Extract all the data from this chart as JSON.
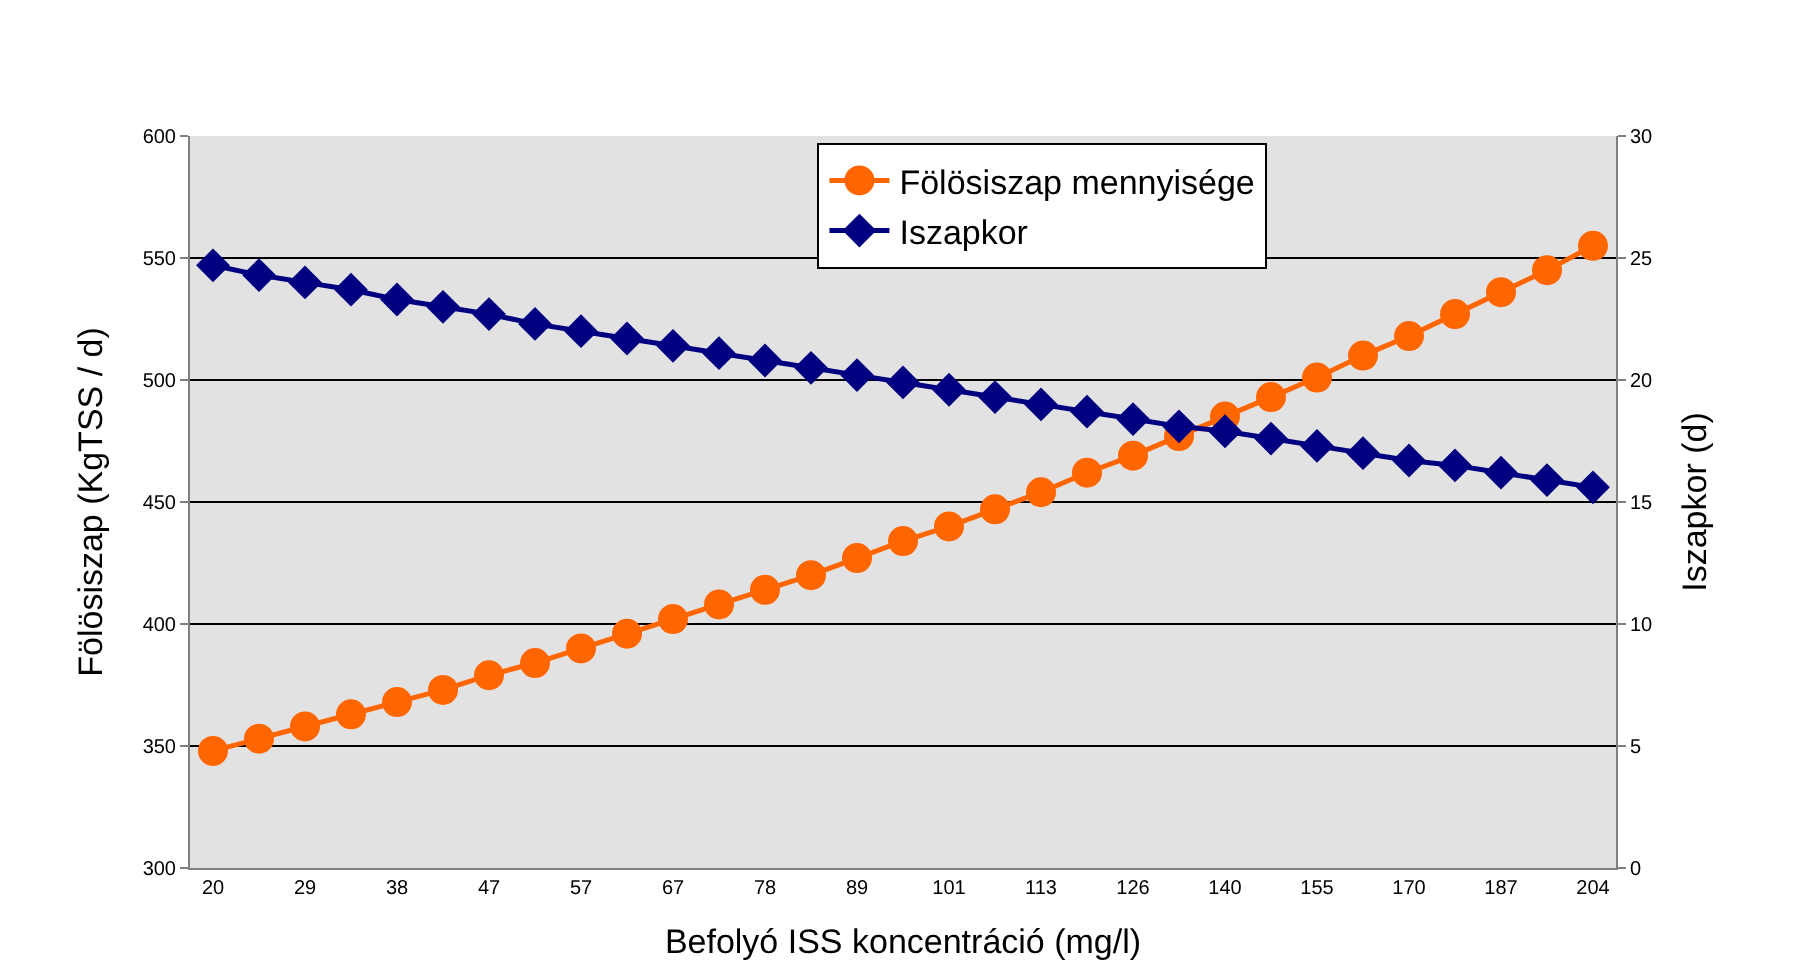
{
  "chart_data": {
    "type": "line",
    "xlabel": "Befolyó ISS koncentráció (mg/l)",
    "ylabel": "Fölösiszap (KgTSS / d)",
    "y2label": "Iszapkor (d)",
    "categories": [
      "20",
      null,
      "29",
      null,
      "38",
      null,
      "47",
      null,
      "57",
      null,
      "67",
      null,
      "78",
      null,
      "89",
      null,
      "101",
      null,
      "113",
      null,
      "126",
      null,
      "140",
      null,
      "155",
      null,
      "170",
      null,
      "187",
      null,
      "204"
    ],
    "series": [
      {
        "name": "Fölösiszap mennyisége",
        "color": "#ff6600",
        "marker": "circle",
        "values": [
          348,
          353,
          358,
          363,
          368,
          373,
          379,
          384,
          390,
          396,
          402,
          408,
          414,
          420,
          427,
          434,
          440,
          447,
          454,
          462,
          469,
          477,
          485,
          493,
          501,
          510,
          518,
          527,
          536,
          545,
          555
        ]
      },
      {
        "name": "Iszapkor",
        "color": "#000080",
        "marker": "diamond",
        "axis": "y2",
        "values": [
          24.7,
          24.3,
          24.0,
          23.7,
          23.3,
          23.0,
          22.7,
          22.3,
          22.0,
          21.7,
          21.4,
          21.1,
          20.8,
          20.5,
          20.2,
          19.9,
          19.6,
          19.3,
          19.0,
          18.7,
          18.4,
          18.1,
          17.9,
          17.6,
          17.3,
          17.0,
          16.7,
          16.5,
          16.2,
          15.9,
          15.6
        ]
      }
    ],
    "ylim": [
      300,
      600
    ],
    "yticks": [
      300,
      350,
      400,
      450,
      500,
      550,
      600
    ],
    "y2lim": [
      0,
      30
    ],
    "y2ticks": [
      0,
      5,
      10,
      15,
      20,
      25,
      30
    ],
    "grid": "y",
    "legend": "top right",
    "line_style": "solid"
  }
}
